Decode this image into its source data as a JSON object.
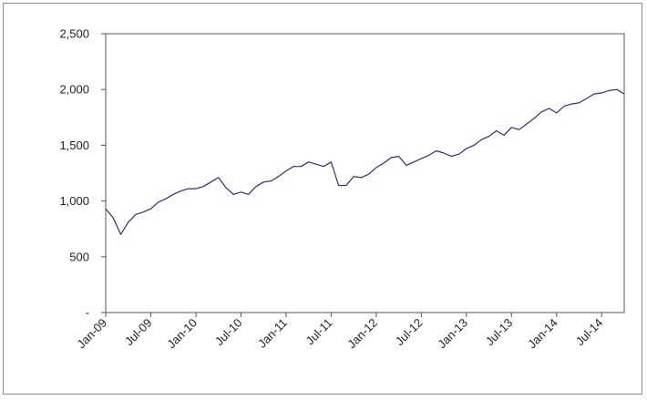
{
  "chart_data": {
    "type": "line",
    "title": "",
    "xlabel": "",
    "ylabel": "",
    "ylim": [
      0,
      2500
    ],
    "yticks": [
      0,
      500,
      1000,
      1500,
      2000,
      2500
    ],
    "ytick_labels": [
      "-",
      "500",
      "1,000",
      "1,500",
      "2,000",
      "2,500"
    ],
    "xlim": [
      "2009-01",
      "2014-10"
    ],
    "xtick_labels": [
      "Jan-09",
      "Jul-09",
      "Jan-10",
      "Jul-10",
      "Jan-11",
      "Jul-11",
      "Jan-12",
      "Jul-12",
      "Jan-13",
      "Jul-13",
      "Jan-14",
      "Jul-14"
    ],
    "grid": false,
    "legend": "none",
    "line_color": "#2b2f7f",
    "series": [
      {
        "x": [
          "2009-01",
          "2009-02",
          "2009-03",
          "2009-04",
          "2009-05",
          "2009-06",
          "2009-07",
          "2009-08",
          "2009-09",
          "2009-10",
          "2009-11",
          "2009-12",
          "2010-01",
          "2010-02",
          "2010-03",
          "2010-04",
          "2010-05",
          "2010-06",
          "2010-07",
          "2010-08",
          "2010-09",
          "2010-10",
          "2010-11",
          "2010-12",
          "2011-01",
          "2011-02",
          "2011-03",
          "2011-04",
          "2011-05",
          "2011-06",
          "2011-07",
          "2011-08",
          "2011-09",
          "2011-10",
          "2011-11",
          "2011-12",
          "2012-01",
          "2012-02",
          "2012-03",
          "2012-04",
          "2012-05",
          "2012-06",
          "2012-07",
          "2012-08",
          "2012-09",
          "2012-10",
          "2012-11",
          "2012-12",
          "2013-01",
          "2013-02",
          "2013-03",
          "2013-04",
          "2013-05",
          "2013-06",
          "2013-07",
          "2013-08",
          "2013-09",
          "2013-10",
          "2013-11",
          "2013-12",
          "2014-01",
          "2014-02",
          "2014-03",
          "2014-04",
          "2014-05",
          "2014-06",
          "2014-07",
          "2014-08",
          "2014-09",
          "2014-10"
        ],
        "y": [
          930,
          850,
          700,
          810,
          880,
          900,
          930,
          990,
          1020,
          1060,
          1090,
          1110,
          1110,
          1130,
          1170,
          1210,
          1120,
          1060,
          1080,
          1060,
          1130,
          1170,
          1180,
          1220,
          1270,
          1310,
          1310,
          1350,
          1330,
          1310,
          1350,
          1140,
          1140,
          1220,
          1210,
          1240,
          1300,
          1340,
          1390,
          1400,
          1320,
          1350,
          1380,
          1410,
          1450,
          1430,
          1400,
          1420,
          1470,
          1500,
          1550,
          1580,
          1630,
          1590,
          1660,
          1640,
          1690,
          1740,
          1800,
          1830,
          1790,
          1850,
          1870,
          1880,
          1920,
          1960,
          1970,
          1990,
          2000,
          1960
        ]
      }
    ]
  }
}
